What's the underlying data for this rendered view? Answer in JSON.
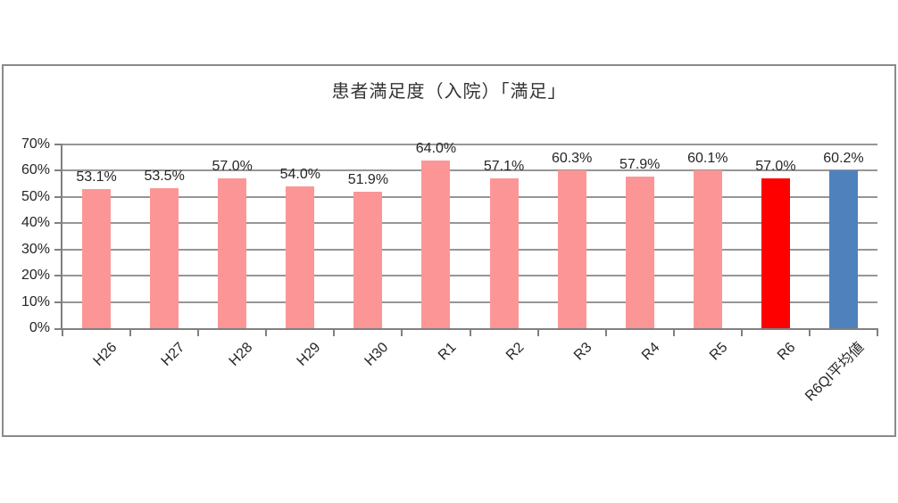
{
  "chart_data": {
    "type": "bar",
    "title": "患者満足度（入院）「満足」",
    "categories": [
      "H26",
      "H27",
      "H28",
      "H29",
      "H30",
      "R1",
      "R2",
      "R3",
      "R4",
      "R5",
      "R6",
      "R6QI平均値"
    ],
    "values": [
      53.1,
      53.5,
      57.0,
      54.0,
      51.9,
      64.0,
      57.1,
      60.3,
      57.9,
      60.1,
      57.0,
      60.2
    ],
    "data_labels": [
      "53.1%",
      "53.5%",
      "57.0%",
      "54.0%",
      "51.9%",
      "64.0%",
      "57.1%",
      "60.3%",
      "57.9%",
      "60.1%",
      "57.0%",
      "60.2%"
    ],
    "bar_colors": [
      "#FC9696",
      "#FC9696",
      "#FC9696",
      "#FC9696",
      "#FC9696",
      "#FC9696",
      "#FC9696",
      "#FC9696",
      "#FC9696",
      "#FC9696",
      "#FF0000",
      "#4F81BD"
    ],
    "xlabel": "",
    "ylabel": "",
    "ylim": [
      0,
      70
    ],
    "ytick_step": 10,
    "ytick_labels": [
      "0%",
      "10%",
      "20%",
      "30%",
      "40%",
      "50%",
      "60%",
      "70%"
    ],
    "grid": true,
    "legend_position": "none"
  },
  "styles": {
    "grid_color": "#969696",
    "axis_color": "#808080",
    "frame_border_color": "#8A8A8A",
    "text_color": "#262626",
    "title_color": "#333333"
  }
}
